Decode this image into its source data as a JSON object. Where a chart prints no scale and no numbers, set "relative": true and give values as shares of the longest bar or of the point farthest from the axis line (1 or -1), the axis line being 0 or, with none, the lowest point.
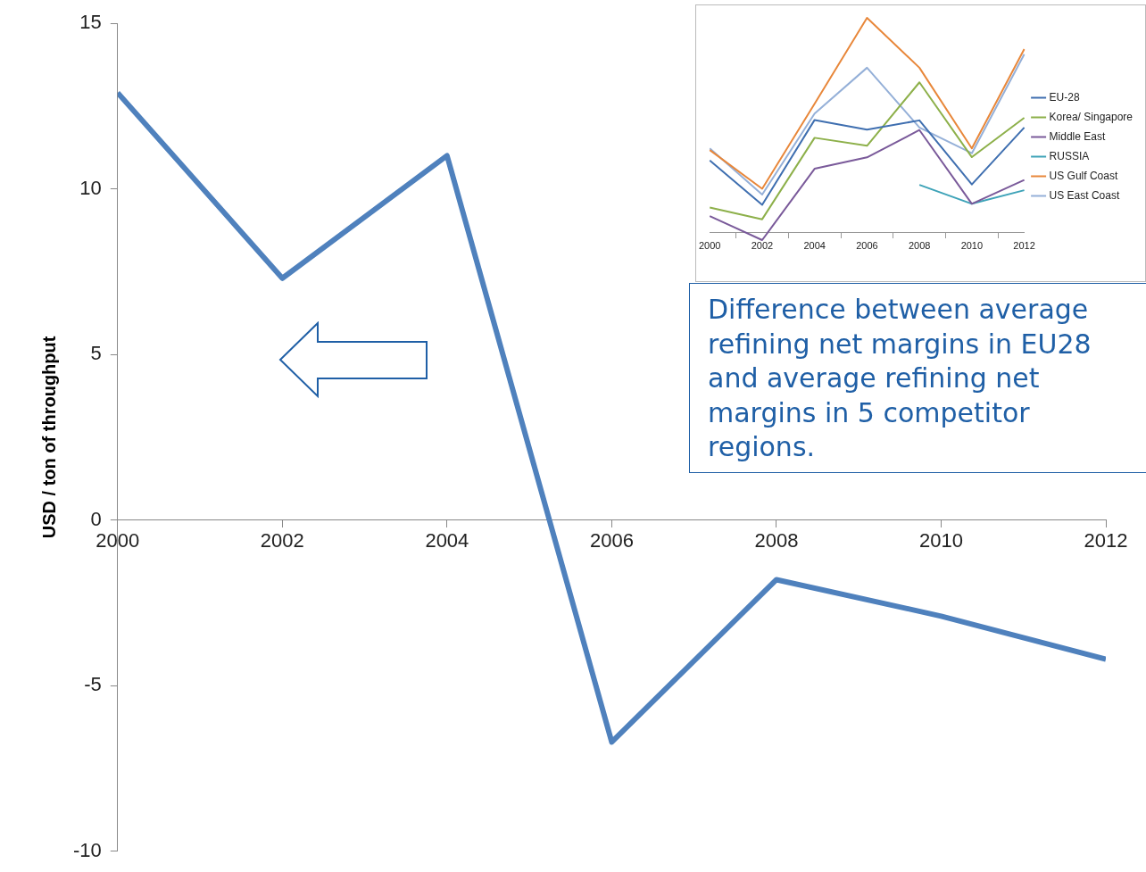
{
  "chart_data": [
    {
      "type": "line",
      "ylabel": "USD / ton of throughput",
      "x": [
        2000,
        2002,
        2004,
        2006,
        2008,
        2010,
        2012
      ],
      "xlim": [
        2000,
        2012
      ],
      "xticks": [
        2000,
        2002,
        2004,
        2006,
        2008,
        2010,
        2012
      ],
      "ylim": [
        -10,
        15
      ],
      "yticks": [
        -10,
        -5,
        0,
        5,
        10,
        15
      ],
      "grid": false,
      "legend": false,
      "marker": "none",
      "line_style": "solid",
      "series": [
        {
          "color": "#4f81bd",
          "values": [
            12.9,
            7.3,
            11.0,
            -6.7,
            -1.8,
            -2.9,
            -4.2
          ]
        }
      ],
      "annotations": [
        "Difference between average refining net margins in EU28 and average refining net margins in 5 competitor regions."
      ]
    },
    {
      "type": "line",
      "relative": true,
      "categories": [
        "2000",
        "2002",
        "2004",
        "2006",
        "2008",
        "2010",
        "2012"
      ],
      "grid": false,
      "legend": "right",
      "marker": "none",
      "line_style": "solid",
      "series": [
        {
          "name": "EU-28",
          "color": "#3f6fb0",
          "values": [
            0.337,
            0.13,
            0.525,
            0.48,
            0.523,
            0.225,
            0.49
          ]
        },
        {
          "name": "Korea/ Singapore",
          "color": "#8db04a",
          "values": [
            0.118,
            0.063,
            0.442,
            0.405,
            0.7,
            0.352,
            0.535
          ]
        },
        {
          "name": "Middle East",
          "color": "#7a5a9a",
          "values": [
            0.078,
            -0.034,
            0.298,
            0.351,
            0.478,
            0.135,
            0.246
          ]
        },
        {
          "name": "RUSSIA",
          "color": "#3ea3b8",
          "values": [
            null,
            null,
            null,
            null,
            0.223,
            0.135,
            0.198
          ]
        },
        {
          "name": "US Gulf Coast",
          "color": "#e8873a",
          "values": [
            0.385,
            0.205,
            0.6,
            1.0,
            0.768,
            0.393,
            0.855
          ]
        },
        {
          "name": "US East Coast",
          "color": "#95b0d8",
          "values": [
            0.393,
            0.178,
            0.555,
            0.768,
            0.49,
            0.37,
            0.831
          ]
        }
      ]
    }
  ]
}
